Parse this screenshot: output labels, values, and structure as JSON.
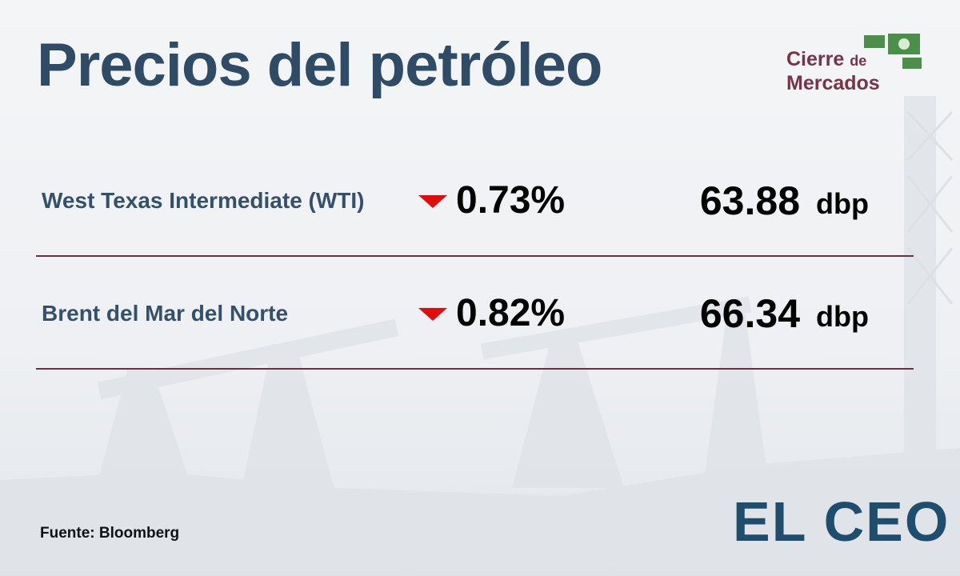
{
  "header": {
    "title": "Precios del petróleo"
  },
  "badge": {
    "line1": "Cierre",
    "connector": "de",
    "line2": "Mercados"
  },
  "rows": [
    {
      "name": "West Texas Intermediate (WTI)",
      "trend": "down",
      "change": "0.73%",
      "price": "63.88",
      "unit": "dbp"
    },
    {
      "name": "Brent del Mar del Norte",
      "trend": "down",
      "change": "0.82%",
      "price": "66.34",
      "unit": "dbp"
    }
  ],
  "footer": {
    "source": "Fuente: Bloomberg",
    "brand": "EL CEO"
  }
}
